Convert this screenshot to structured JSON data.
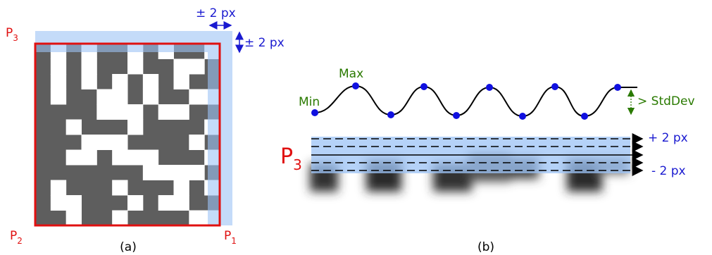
{
  "panel_a": {
    "label": "(a)",
    "shift_horizontal": "± 2 px",
    "shift_vertical": "± 2 px",
    "corners": {
      "p3": {
        "main": "P",
        "sub": "3"
      },
      "p2": {
        "main": "P",
        "sub": "2"
      },
      "p1": {
        "main": "P",
        "sub": "1"
      }
    }
  },
  "panel_b": {
    "label": "(b)",
    "max": "Max",
    "min": "Min",
    "std_dev": "> StdDev",
    "plus": "+ 2 px",
    "minus": "- 2 px",
    "row": {
      "main": "P",
      "sub": "3"
    }
  }
}
